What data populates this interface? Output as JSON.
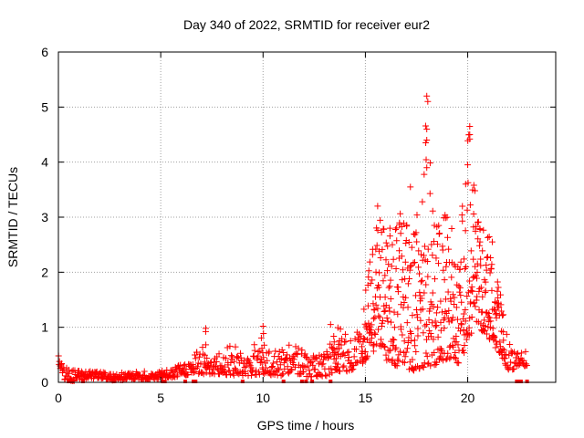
{
  "chart_data": {
    "type": "scatter",
    "title": "Day 340 of 2022, SRMTID for receiver eur2",
    "xlabel": "GPS time / hours",
    "ylabel": "SRMTID / TECUs",
    "xlim": [
      0,
      24.3
    ],
    "ylim": [
      0,
      6
    ],
    "xticks": [
      0,
      5,
      10,
      15,
      20
    ],
    "yticks": [
      0,
      1,
      2,
      3,
      4,
      5,
      6
    ],
    "grid": true,
    "marker": "+",
    "series_color": "#ff0000",
    "series": [
      {
        "name": "SRMTID",
        "envelope": {
          "x": [
            0.0,
            0.3,
            0.7,
            1.2,
            2.0,
            2.7,
            3.5,
            4.5,
            5.5,
            6.5,
            7.2,
            7.6,
            8.5,
            9.3,
            10.0,
            10.5,
            11.5,
            12.5,
            13.2,
            13.5,
            14.2,
            14.8,
            15.2,
            15.6,
            16.0,
            16.5,
            17.0,
            17.5,
            18.0,
            18.4,
            18.8,
            19.3,
            19.7,
            20.0,
            20.4,
            20.8,
            21.2,
            21.6,
            22.0,
            22.6,
            22.9
          ],
          "ymin": [
            0.35,
            0.05,
            0.02,
            0.05,
            0.08,
            0.03,
            0.05,
            0.05,
            0.08,
            0.15,
            0.15,
            0.15,
            0.12,
            0.12,
            0.15,
            0.12,
            0.12,
            0.1,
            0.12,
            0.2,
            0.2,
            0.3,
            0.5,
            0.6,
            0.4,
            0.3,
            0.25,
            0.2,
            0.3,
            0.3,
            0.4,
            0.4,
            0.3,
            0.8,
            1.0,
            0.9,
            0.7,
            0.5,
            0.2,
            0.3,
            0.3
          ],
          "ymax": [
            0.55,
            0.3,
            0.25,
            0.25,
            0.2,
            0.15,
            0.2,
            0.2,
            0.25,
            0.45,
            1.0,
            0.5,
            0.7,
            0.5,
            1.0,
            0.6,
            0.7,
            0.5,
            0.6,
            1.1,
            0.8,
            1.0,
            2.2,
            3.2,
            2.7,
            2.9,
            3.5,
            3.2,
            5.2,
            3.0,
            3.2,
            2.8,
            2.9,
            4.7,
            3.6,
            2.9,
            2.5,
            1.6,
            0.7,
            0.6,
            0.6
          ]
        },
        "spikes": [
          [
            18.0,
            5.2
          ],
          [
            18.05,
            5.1
          ],
          [
            18.0,
            4.6
          ],
          [
            18.0,
            4.4
          ],
          [
            17.95,
            4.35
          ],
          [
            18.0,
            3.9
          ],
          [
            20.1,
            4.65
          ],
          [
            20.1,
            4.5
          ],
          [
            20.1,
            4.42
          ],
          [
            20.0,
            3.95
          ],
          [
            17.2,
            3.55
          ],
          [
            19.9,
            3.6
          ],
          [
            20.3,
            3.58
          ],
          [
            15.6,
            3.2
          ],
          [
            16.2,
            2.8
          ],
          [
            20.6,
            2.55
          ],
          [
            21.2,
            2.55
          ],
          [
            7.2,
            0.98
          ],
          [
            10.0,
            1.02
          ],
          [
            13.3,
            1.05
          ]
        ],
        "zero_points": [
          0.5,
          0.6,
          0.7,
          1.2,
          2.7,
          5.1,
          5.2,
          6.2,
          6.6,
          6.7,
          9.0,
          11.0,
          11.9,
          12.1,
          12.4,
          13.3,
          22.4,
          22.5,
          22.6,
          22.9
        ]
      }
    ]
  }
}
